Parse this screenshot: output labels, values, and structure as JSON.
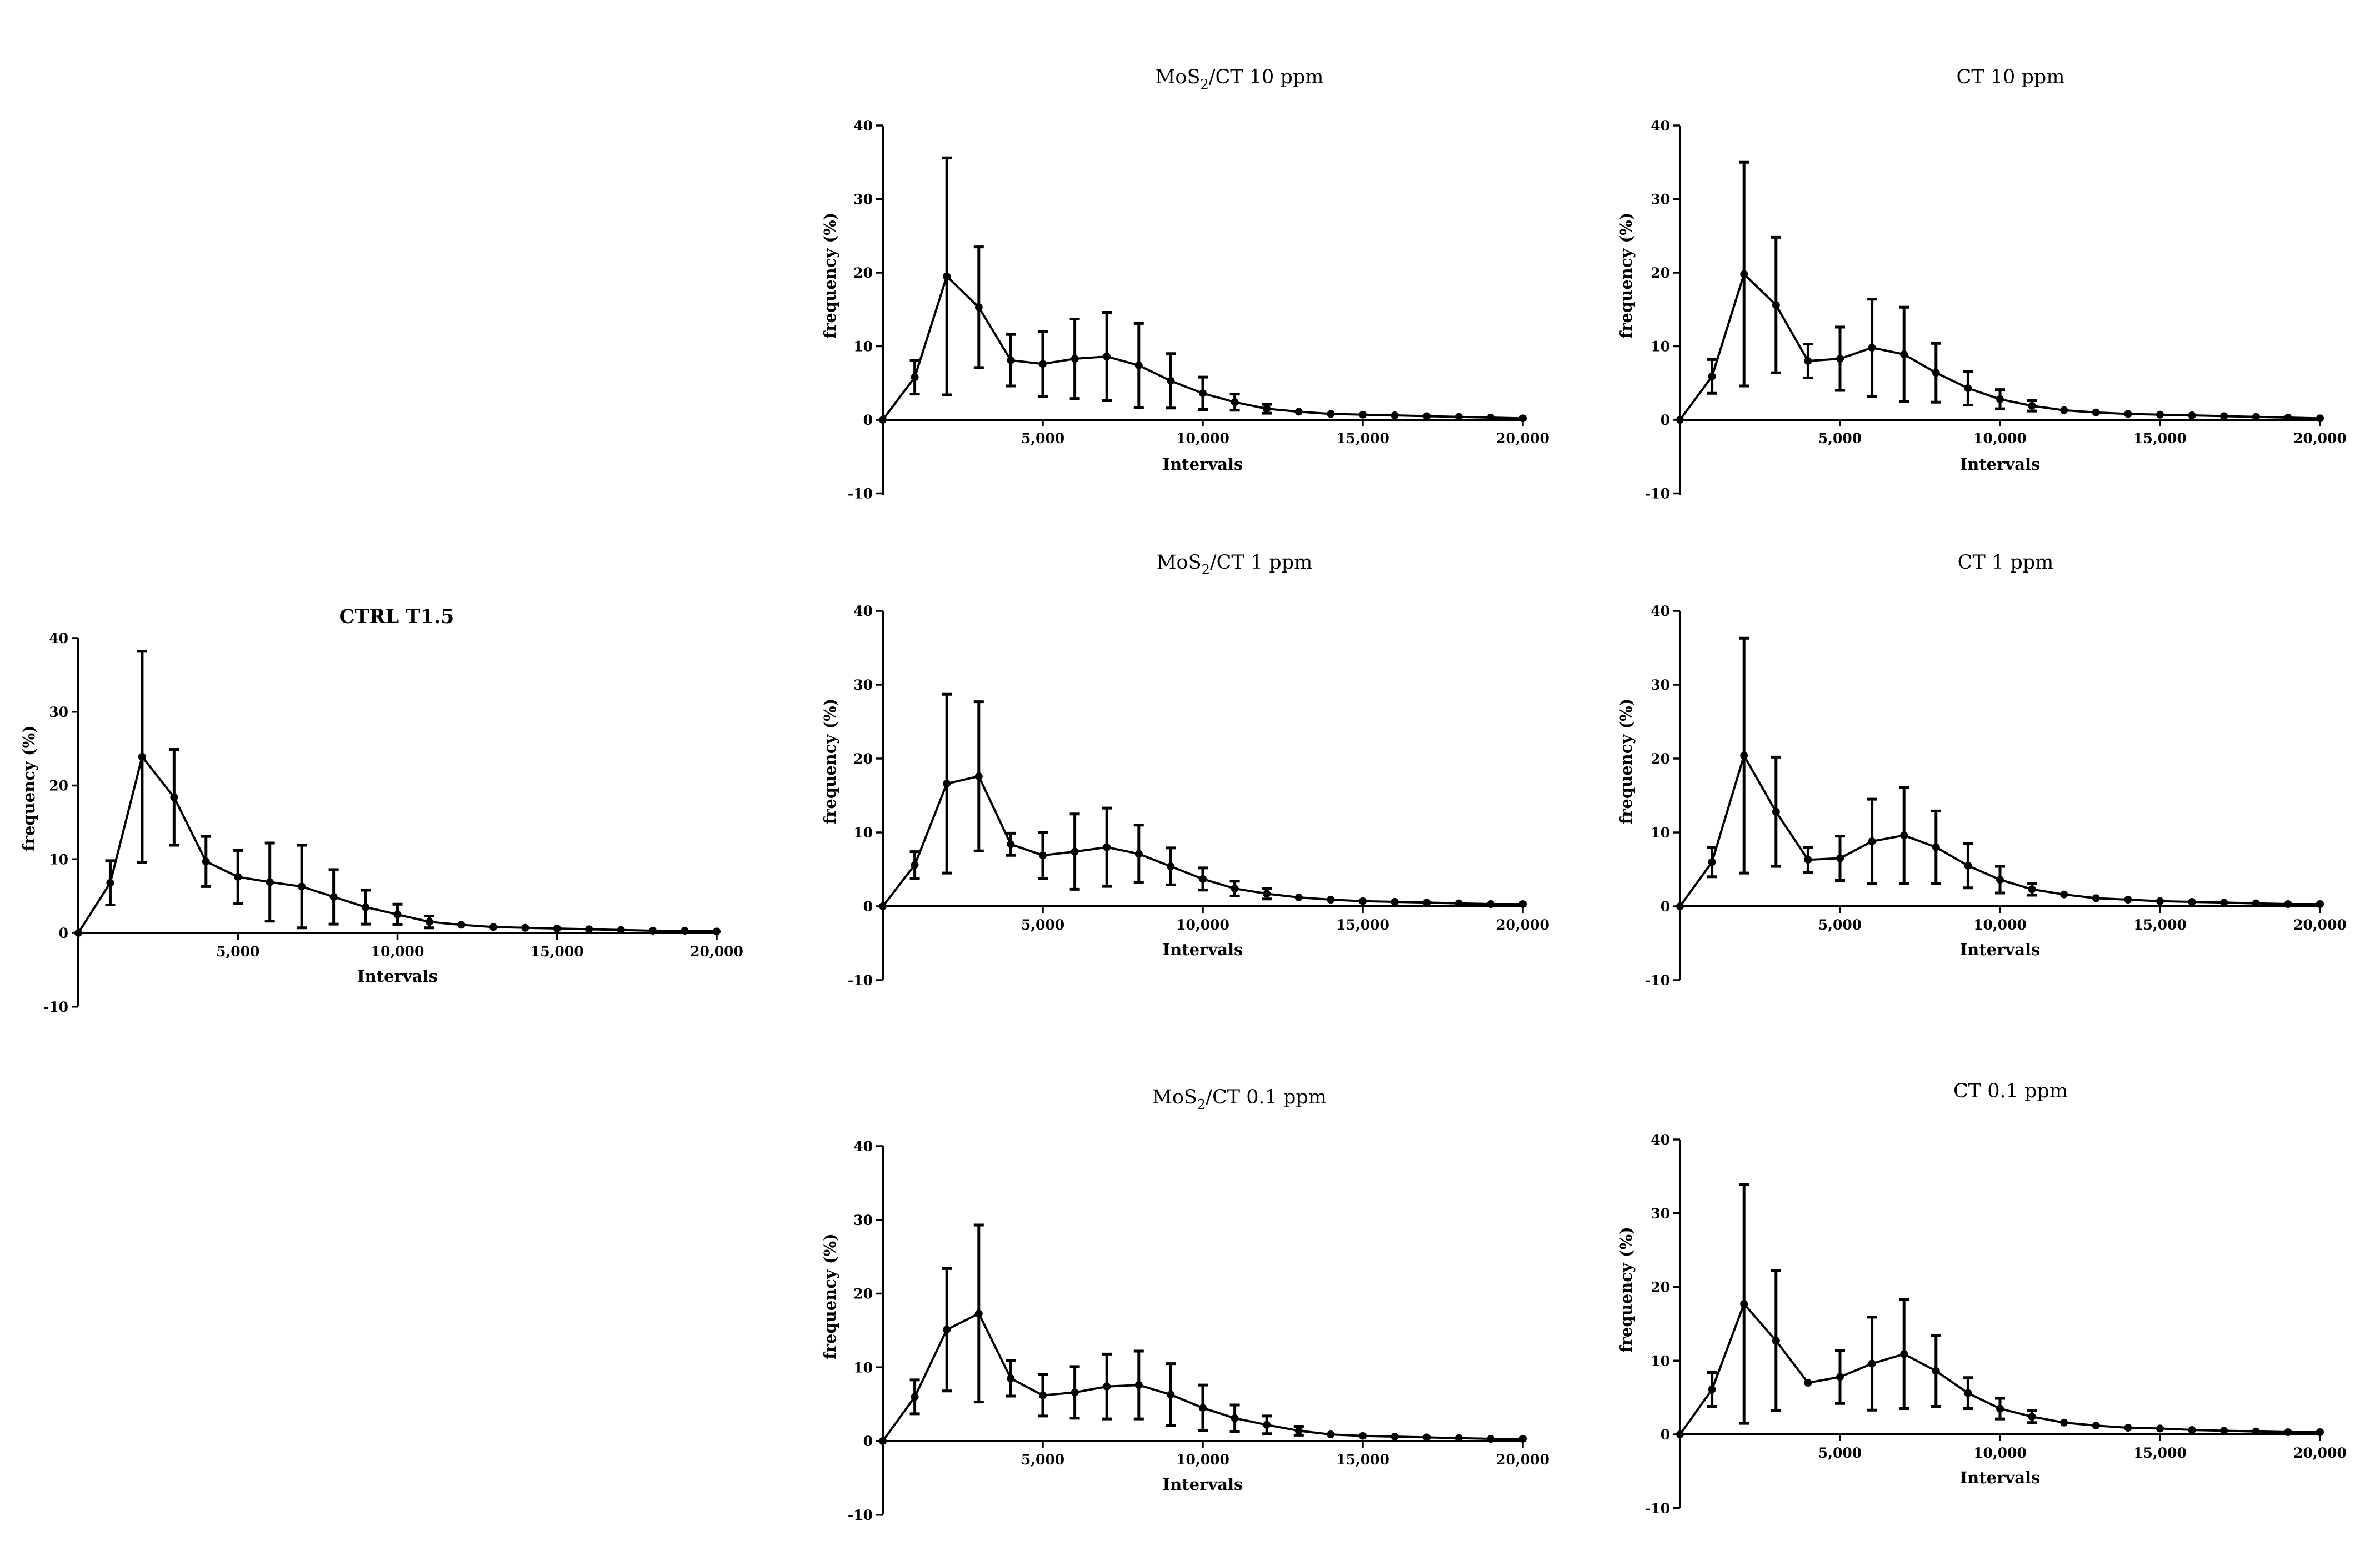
{
  "chart_data": [
    {
      "id": "mos2-ct-10",
      "type": "line",
      "title": "MoS2/CT 10 ppm",
      "title_main": "MoS",
      "title_sub": "2",
      "title_rest": "/CT 10 ppm",
      "xlabel": "Intervals",
      "ylabel": "frequency (%)",
      "xlim": [
        0,
        20000
      ],
      "ylim": [
        -10,
        40
      ],
      "x_ticks": [
        5000,
        10000,
        15000,
        20000
      ],
      "x_tick_labels": [
        "5,000",
        "10,000",
        "15,000",
        "20,000"
      ],
      "y_ticks": [
        40,
        30,
        20,
        10,
        0,
        -10
      ],
      "y_tick_labels": [
        "40",
        "30",
        "20",
        "10",
        "0",
        "-10"
      ],
      "x": [
        0,
        1000,
        2000,
        3000,
        4000,
        5000,
        6000,
        7000,
        8000,
        9000,
        10000,
        11000,
        12000,
        13000,
        14000,
        15000,
        16000,
        17000,
        18000,
        19000,
        20000
      ],
      "values": [
        0,
        5.8,
        19.5,
        15.3,
        8.1,
        7.6,
        8.3,
        8.6,
        7.4,
        5.3,
        3.6,
        2.4,
        1.5,
        1.1,
        0.8,
        0.7,
        0.6,
        0.5,
        0.4,
        0.3,
        0.2
      ],
      "errors": [
        0,
        2.3,
        16.1,
        8.2,
        3.5,
        4.4,
        5.4,
        6.0,
        5.7,
        3.7,
        2.2,
        1.1,
        0.6,
        0,
        0,
        0,
        0,
        0,
        0,
        0,
        0
      ]
    },
    {
      "id": "ct-10",
      "type": "line",
      "title": "CT 10 ppm",
      "title_main": "CT 10 ppm",
      "xlabel": "Intervals",
      "ylabel": "frequency (%)",
      "xlim": [
        0,
        20000
      ],
      "ylim": [
        -10,
        40
      ],
      "x_ticks": [
        5000,
        10000,
        15000,
        20000
      ],
      "x_tick_labels": [
        "5,000",
        "10,000",
        "15,000",
        "20,000"
      ],
      "y_ticks": [
        40,
        30,
        20,
        10,
        0,
        -10
      ],
      "y_tick_labels": [
        "40",
        "30",
        "20",
        "10",
        "0",
        "-10"
      ],
      "x": [
        0,
        1000,
        2000,
        3000,
        4000,
        5000,
        6000,
        7000,
        8000,
        9000,
        10000,
        11000,
        12000,
        13000,
        14000,
        15000,
        16000,
        17000,
        18000,
        19000,
        20000
      ],
      "values": [
        0,
        5.9,
        19.8,
        15.6,
        8.0,
        8.3,
        9.8,
        8.9,
        6.4,
        4.3,
        2.8,
        1.9,
        1.3,
        1.0,
        0.8,
        0.7,
        0.6,
        0.5,
        0.4,
        0.3,
        0.2
      ],
      "errors": [
        0,
        2.3,
        15.2,
        9.2,
        2.3,
        4.3,
        6.6,
        6.4,
        4.0,
        2.3,
        1.3,
        0.7,
        0,
        0,
        0,
        0,
        0,
        0,
        0,
        0,
        0
      ]
    },
    {
      "id": "ctrl-t15",
      "type": "line",
      "title": "CTRL T1.5",
      "title_main": "CTRL T1.5",
      "xlabel": "Intervals",
      "ylabel": "frequency (%)",
      "xlim": [
        0,
        20000
      ],
      "ylim": [
        -10,
        40
      ],
      "x_ticks": [
        5000,
        10000,
        15000,
        20000
      ],
      "x_tick_labels": [
        "5,000",
        "10,000",
        "15,000",
        "20,000"
      ],
      "y_ticks": [
        40,
        30,
        20,
        10,
        0,
        -10
      ],
      "y_tick_labels": [
        "40",
        "30",
        "20",
        "10",
        "0",
        "-10"
      ],
      "x": [
        0,
        1000,
        2000,
        3000,
        4000,
        5000,
        6000,
        7000,
        8000,
        9000,
        10000,
        11000,
        12000,
        13000,
        14000,
        15000,
        16000,
        17000,
        18000,
        19000,
        20000
      ],
      "values": [
        0,
        6.8,
        23.9,
        18.4,
        9.7,
        7.6,
        6.9,
        6.3,
        4.9,
        3.5,
        2.5,
        1.5,
        1.1,
        0.8,
        0.7,
        0.6,
        0.5,
        0.4,
        0.3,
        0.3,
        0.2
      ],
      "errors": [
        0,
        3.0,
        14.3,
        6.5,
        3.4,
        3.6,
        5.3,
        5.6,
        3.7,
        2.3,
        1.4,
        0.8,
        0,
        0,
        0,
        0,
        0,
        0,
        0,
        0,
        0
      ]
    },
    {
      "id": "mos2-ct-1",
      "type": "line",
      "title": "MoS2/CT 1 ppm",
      "title_main": "MoS",
      "title_sub": "2",
      "title_rest": "/CT 1 ppm",
      "xlabel": "Intervals",
      "ylabel": "frequency (%)",
      "xlim": [
        0,
        20000
      ],
      "ylim": [
        -10,
        40
      ],
      "x_ticks": [
        5000,
        10000,
        15000,
        20000
      ],
      "x_tick_labels": [
        "5,000",
        "10,000",
        "15,000",
        "20,000"
      ],
      "y_ticks": [
        40,
        30,
        20,
        10,
        0,
        -10
      ],
      "y_tick_labels": [
        "40",
        "30",
        "20",
        "10",
        "0",
        "-10"
      ],
      "x": [
        0,
        1000,
        2000,
        3000,
        4000,
        5000,
        6000,
        7000,
        8000,
        9000,
        10000,
        11000,
        12000,
        13000,
        14000,
        15000,
        16000,
        17000,
        18000,
        19000,
        20000
      ],
      "values": [
        0,
        5.6,
        16.6,
        17.6,
        8.4,
        6.9,
        7.4,
        8.0,
        7.1,
        5.4,
        3.7,
        2.4,
        1.7,
        1.2,
        0.9,
        0.7,
        0.6,
        0.5,
        0.4,
        0.3,
        0.3
      ],
      "errors": [
        0,
        1.8,
        12.1,
        10.1,
        1.5,
        3.1,
        5.1,
        5.3,
        3.9,
        2.5,
        1.5,
        1.0,
        0.7,
        0,
        0,
        0,
        0,
        0,
        0,
        0,
        0
      ]
    },
    {
      "id": "ct-1",
      "type": "line",
      "title": "CT 1 ppm",
      "title_main": "CT 1 ppm",
      "xlabel": "Intervals",
      "ylabel": "frequency (%)",
      "xlim": [
        0,
        20000
      ],
      "ylim": [
        -10,
        40
      ],
      "x_ticks": [
        5000,
        10000,
        15000,
        20000
      ],
      "x_tick_labels": [
        "5,000",
        "10,000",
        "15,000",
        "20,000"
      ],
      "y_ticks": [
        40,
        30,
        20,
        10,
        0,
        -10
      ],
      "y_tick_labels": [
        "40",
        "30",
        "20",
        "10",
        "0",
        "-10"
      ],
      "x": [
        0,
        1000,
        2000,
        3000,
        4000,
        5000,
        6000,
        7000,
        8000,
        9000,
        10000,
        11000,
        12000,
        13000,
        14000,
        15000,
        16000,
        17000,
        18000,
        19000,
        20000
      ],
      "values": [
        0,
        6.0,
        20.4,
        12.8,
        6.3,
        6.5,
        8.8,
        9.6,
        8.0,
        5.5,
        3.6,
        2.3,
        1.6,
        1.1,
        0.9,
        0.7,
        0.6,
        0.5,
        0.4,
        0.3,
        0.3
      ],
      "errors": [
        0,
        2.0,
        15.9,
        7.4,
        1.7,
        3.0,
        5.7,
        6.5,
        4.9,
        3.0,
        1.8,
        0.8,
        0,
        0,
        0,
        0,
        0,
        0,
        0,
        0,
        0
      ]
    },
    {
      "id": "mos2-ct-01",
      "type": "line",
      "title": "MoS2/CT 0.1 ppm",
      "title_main": "MoS",
      "title_sub": "2",
      "title_rest": "/CT 0.1 ppm",
      "xlabel": "Intervals",
      "ylabel": "frequency (%)",
      "xlim": [
        0,
        20000
      ],
      "ylim": [
        -10,
        40
      ],
      "x_ticks": [
        5000,
        10000,
        15000,
        20000
      ],
      "x_tick_labels": [
        "5,000",
        "10,000",
        "15,000",
        "20,000"
      ],
      "y_ticks": [
        40,
        30,
        20,
        10,
        0,
        -10
      ],
      "y_tick_labels": [
        "40",
        "30",
        "20",
        "10",
        "0",
        "-10"
      ],
      "x": [
        0,
        1000,
        2000,
        3000,
        4000,
        5000,
        6000,
        7000,
        8000,
        9000,
        10000,
        11000,
        12000,
        13000,
        14000,
        15000,
        16000,
        17000,
        18000,
        19000,
        20000
      ],
      "values": [
        0,
        6.0,
        15.1,
        17.3,
        8.5,
        6.2,
        6.6,
        7.4,
        7.6,
        6.3,
        4.5,
        3.1,
        2.2,
        1.4,
        0.9,
        0.7,
        0.6,
        0.5,
        0.4,
        0.3,
        0.3
      ],
      "errors": [
        0,
        2.3,
        8.3,
        12.0,
        2.4,
        2.8,
        3.5,
        4.4,
        4.6,
        4.2,
        3.1,
        1.8,
        1.2,
        0.6,
        0,
        0,
        0,
        0,
        0,
        0,
        0
      ]
    },
    {
      "id": "ct-01",
      "type": "line",
      "title": "CT 0.1 ppm",
      "title_main": "CT 0.1 ppm",
      "xlabel": "Intervals",
      "ylabel": "frequency (%)",
      "xlim": [
        0,
        20000
      ],
      "ylim": [
        -10,
        40
      ],
      "x_ticks": [
        5000,
        10000,
        15000,
        20000
      ],
      "x_tick_labels": [
        "5,000",
        "10,000",
        "15,000",
        "20,000"
      ],
      "y_ticks": [
        40,
        30,
        20,
        10,
        0,
        -10
      ],
      "y_tick_labels": [
        "40",
        "30",
        "20",
        "10",
        "0",
        "-10"
      ],
      "x": [
        0,
        1000,
        2000,
        3000,
        4000,
        5000,
        6000,
        7000,
        8000,
        9000,
        10000,
        11000,
        12000,
        13000,
        14000,
        15000,
        16000,
        17000,
        18000,
        19000,
        20000
      ],
      "values": [
        0,
        6.1,
        17.7,
        12.7,
        7.0,
        7.8,
        9.6,
        10.9,
        8.6,
        5.6,
        3.5,
        2.4,
        1.6,
        1.2,
        0.9,
        0.8,
        0.6,
        0.5,
        0.4,
        0.3,
        0.3
      ],
      "errors": [
        0,
        2.3,
        16.2,
        9.5,
        0,
        3.6,
        6.3,
        7.4,
        4.8,
        2.1,
        1.4,
        0.8,
        0,
        0,
        0,
        0,
        0,
        0,
        0,
        0,
        0
      ]
    }
  ]
}
